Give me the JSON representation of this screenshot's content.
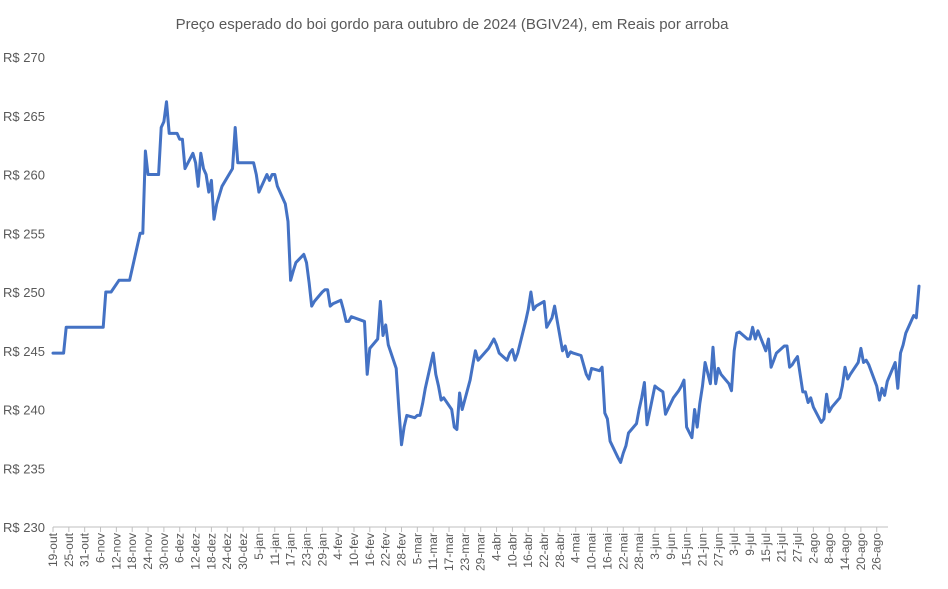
{
  "chart_data": {
    "type": "line",
    "title": "Preço esperado do boi gordo para outubro de 2024 (BGIV24), em Reais por arroba",
    "xlabel": "",
    "ylabel": "",
    "ylim": [
      230,
      270
    ],
    "ytick_values": [
      230,
      235,
      240,
      245,
      250,
      255,
      260,
      265,
      270
    ],
    "ytick_labels": [
      "R$ 230",
      "R$ 235",
      "R$ 240",
      "R$ 245",
      "R$ 250",
      "R$ 255",
      "R$ 260",
      "R$ 265",
      "R$ 270"
    ],
    "x_start": "2023-10-19",
    "x_end": "2024-08-28",
    "xtick_dates": [
      "2023-10-19",
      "2023-10-25",
      "2023-10-31",
      "2023-11-06",
      "2023-11-12",
      "2023-11-18",
      "2023-11-24",
      "2023-11-30",
      "2023-12-06",
      "2023-12-12",
      "2023-12-18",
      "2023-12-24",
      "2023-12-30",
      "2024-01-05",
      "2024-01-11",
      "2024-01-17",
      "2024-01-23",
      "2024-01-29",
      "2024-02-04",
      "2024-02-10",
      "2024-02-16",
      "2024-02-22",
      "2024-02-28",
      "2024-03-05",
      "2024-03-11",
      "2024-03-17",
      "2024-03-23",
      "2024-03-29",
      "2024-04-04",
      "2024-04-10",
      "2024-04-16",
      "2024-04-22",
      "2024-04-28",
      "2024-05-04",
      "2024-05-10",
      "2024-05-16",
      "2024-05-22",
      "2024-05-28",
      "2024-06-03",
      "2024-06-09",
      "2024-06-15",
      "2024-06-21",
      "2024-06-27",
      "2024-07-03",
      "2024-07-09",
      "2024-07-15",
      "2024-07-21",
      "2024-07-27",
      "2024-08-02",
      "2024-08-08",
      "2024-08-14",
      "2024-08-20",
      "2024-08-26"
    ],
    "xtick_labels": [
      "19-out",
      "25-out",
      "31-out",
      "6-nov",
      "12-nov",
      "18-nov",
      "24-nov",
      "30-nov",
      "6-dez",
      "12-dez",
      "18-dez",
      "24-dez",
      "30-dez",
      "5-jan",
      "11-jan",
      "17-jan",
      "23-jan",
      "29-jan",
      "4-fev",
      "10-fev",
      "16-fev",
      "22-fev",
      "28-fev",
      "5-mar",
      "11-mar",
      "17-mar",
      "23-mar",
      "29-mar",
      "4-abr",
      "10-abr",
      "16-abr",
      "22-abr",
      "28-abr",
      "4-mai",
      "10-mai",
      "16-mai",
      "22-mai",
      "28-mai",
      "3-jun",
      "9-jun",
      "15-jun",
      "21-jun",
      "27-jun",
      "3-jul",
      "9-jul",
      "15-jul",
      "21-jul",
      "27-jul",
      "2-ago",
      "8-ago",
      "14-ago",
      "20-ago",
      "26-ago"
    ],
    "series": [
      {
        "name": "BGIV24",
        "color": "#4472c4",
        "points": [
          [
            "2023-10-19",
            244.8
          ],
          [
            "2023-10-23",
            244.8
          ],
          [
            "2023-10-24",
            247.0
          ],
          [
            "2023-10-27",
            247.0
          ],
          [
            "2023-10-31",
            247.0
          ],
          [
            "2023-11-03",
            247.0
          ],
          [
            "2023-11-07",
            247.0
          ],
          [
            "2023-11-08",
            250.0
          ],
          [
            "2023-11-09",
            250.0
          ],
          [
            "2023-11-10",
            250.0
          ],
          [
            "2023-11-13",
            251.0
          ],
          [
            "2023-11-16",
            251.0
          ],
          [
            "2023-11-17",
            251.0
          ],
          [
            "2023-11-20",
            254.0
          ],
          [
            "2023-11-21",
            255.0
          ],
          [
            "2023-11-22",
            255.0
          ],
          [
            "2023-11-23",
            262.0
          ],
          [
            "2023-11-24",
            260.0
          ],
          [
            "2023-11-27",
            260.0
          ],
          [
            "2023-11-28",
            260.0
          ],
          [
            "2023-11-29",
            264.0
          ],
          [
            "2023-11-30",
            264.5
          ],
          [
            "2023-12-01",
            266.2
          ],
          [
            "2023-12-02",
            263.5
          ],
          [
            "2023-12-05",
            263.5
          ],
          [
            "2023-12-06",
            263.0
          ],
          [
            "2023-12-07",
            263.0
          ],
          [
            "2023-12-08",
            260.5
          ],
          [
            "2023-12-11",
            261.8
          ],
          [
            "2023-12-12",
            261.0
          ],
          [
            "2023-12-13",
            259.0
          ],
          [
            "2023-12-14",
            261.8
          ],
          [
            "2023-12-15",
            260.5
          ],
          [
            "2023-12-16",
            260.0
          ],
          [
            "2023-12-17",
            258.5
          ],
          [
            "2023-12-18",
            259.5
          ],
          [
            "2023-12-19",
            256.2
          ],
          [
            "2023-12-20",
            257.5
          ],
          [
            "2023-12-22",
            259.0
          ],
          [
            "2023-12-26",
            260.5
          ],
          [
            "2023-12-27",
            264.0
          ],
          [
            "2023-12-28",
            261.0
          ],
          [
            "2024-01-01",
            261.0
          ],
          [
            "2024-01-03",
            261.0
          ],
          [
            "2024-01-04",
            260.0
          ],
          [
            "2024-01-05",
            258.5
          ],
          [
            "2024-01-08",
            260.0
          ],
          [
            "2024-01-09",
            259.5
          ],
          [
            "2024-01-10",
            260.0
          ],
          [
            "2024-01-11",
            260.0
          ],
          [
            "2024-01-12",
            259.0
          ],
          [
            "2024-01-15",
            257.5
          ],
          [
            "2024-01-16",
            256.0
          ],
          [
            "2024-01-17",
            251.0
          ],
          [
            "2024-01-18",
            251.8
          ],
          [
            "2024-01-19",
            252.5
          ],
          [
            "2024-01-22",
            253.2
          ],
          [
            "2024-01-23",
            252.5
          ],
          [
            "2024-01-24",
            250.8
          ],
          [
            "2024-01-25",
            248.8
          ],
          [
            "2024-01-26",
            249.2
          ],
          [
            "2024-01-29",
            250.0
          ],
          [
            "2024-01-30",
            250.2
          ],
          [
            "2024-01-31",
            250.2
          ],
          [
            "2024-02-01",
            248.8
          ],
          [
            "2024-02-02",
            249.0
          ],
          [
            "2024-02-05",
            249.3
          ],
          [
            "2024-02-06",
            248.5
          ],
          [
            "2024-02-07",
            247.5
          ],
          [
            "2024-02-08",
            247.5
          ],
          [
            "2024-02-09",
            247.9
          ],
          [
            "2024-02-14",
            247.5
          ],
          [
            "2024-02-15",
            243.0
          ],
          [
            "2024-02-16",
            245.2
          ],
          [
            "2024-02-19",
            246.0
          ],
          [
            "2024-02-20",
            249.2
          ],
          [
            "2024-02-21",
            246.3
          ],
          [
            "2024-02-22",
            247.2
          ],
          [
            "2024-02-23",
            245.5
          ],
          [
            "2024-02-26",
            243.5
          ],
          [
            "2024-02-27",
            240.0
          ],
          [
            "2024-02-28",
            237.0
          ],
          [
            "2024-02-29",
            238.5
          ],
          [
            "2024-03-01",
            239.5
          ],
          [
            "2024-03-04",
            239.3
          ],
          [
            "2024-03-05",
            239.5
          ],
          [
            "2024-03-06",
            239.5
          ],
          [
            "2024-03-07",
            240.5
          ],
          [
            "2024-03-08",
            241.8
          ],
          [
            "2024-03-11",
            244.8
          ],
          [
            "2024-03-12",
            243.0
          ],
          [
            "2024-03-13",
            242.0
          ],
          [
            "2024-03-14",
            240.8
          ],
          [
            "2024-03-15",
            241.0
          ],
          [
            "2024-03-18",
            240.0
          ],
          [
            "2024-03-19",
            238.5
          ],
          [
            "2024-03-20",
            238.3
          ],
          [
            "2024-03-21",
            241.4
          ],
          [
            "2024-03-22",
            240.0
          ],
          [
            "2024-03-25",
            242.5
          ],
          [
            "2024-03-26",
            243.8
          ],
          [
            "2024-03-27",
            245.0
          ],
          [
            "2024-03-28",
            244.2
          ],
          [
            "2024-04-01",
            245.2
          ],
          [
            "2024-04-03",
            246.0
          ],
          [
            "2024-04-04",
            245.5
          ],
          [
            "2024-04-05",
            244.8
          ],
          [
            "2024-04-08",
            244.2
          ],
          [
            "2024-04-09",
            244.8
          ],
          [
            "2024-04-10",
            245.1
          ],
          [
            "2024-04-11",
            244.2
          ],
          [
            "2024-04-12",
            244.8
          ],
          [
            "2024-04-15",
            247.5
          ],
          [
            "2024-04-16",
            248.5
          ],
          [
            "2024-04-17",
            250.0
          ],
          [
            "2024-04-18",
            248.5
          ],
          [
            "2024-04-19",
            248.8
          ],
          [
            "2024-04-22",
            249.2
          ],
          [
            "2024-04-23",
            247.0
          ],
          [
            "2024-04-25",
            247.8
          ],
          [
            "2024-04-26",
            248.8
          ],
          [
            "2024-04-29",
            245.0
          ],
          [
            "2024-04-30",
            245.4
          ],
          [
            "2024-05-01",
            244.5
          ],
          [
            "2024-05-02",
            244.9
          ],
          [
            "2024-05-03",
            244.8
          ],
          [
            "2024-05-06",
            244.6
          ],
          [
            "2024-05-08",
            243.0
          ],
          [
            "2024-05-09",
            242.6
          ],
          [
            "2024-05-10",
            243.5
          ],
          [
            "2024-05-13",
            243.3
          ],
          [
            "2024-05-14",
            243.6
          ],
          [
            "2024-05-15",
            239.7
          ],
          [
            "2024-05-16",
            239.2
          ],
          [
            "2024-05-17",
            237.3
          ],
          [
            "2024-05-20",
            235.9
          ],
          [
            "2024-05-21",
            235.5
          ],
          [
            "2024-05-22",
            236.3
          ],
          [
            "2024-05-23",
            236.9
          ],
          [
            "2024-05-24",
            238.0
          ],
          [
            "2024-05-27",
            238.8
          ],
          [
            "2024-05-28",
            240.0
          ],
          [
            "2024-05-29",
            241.0
          ],
          [
            "2024-05-30",
            242.3
          ],
          [
            "2024-05-31",
            238.7
          ],
          [
            "2024-06-03",
            242.0
          ],
          [
            "2024-06-04",
            241.8
          ],
          [
            "2024-06-06",
            241.5
          ],
          [
            "2024-06-07",
            239.6
          ],
          [
            "2024-06-10",
            241.0
          ],
          [
            "2024-06-11",
            241.3
          ],
          [
            "2024-06-12",
            241.6
          ],
          [
            "2024-06-13",
            242.0
          ],
          [
            "2024-06-14",
            242.5
          ],
          [
            "2024-06-15",
            238.5
          ],
          [
            "2024-06-17",
            237.6
          ],
          [
            "2024-06-18",
            240.0
          ],
          [
            "2024-06-19",
            238.5
          ],
          [
            "2024-06-20",
            240.5
          ],
          [
            "2024-06-21",
            242.0
          ],
          [
            "2024-06-22",
            244.0
          ],
          [
            "2024-06-24",
            242.2
          ],
          [
            "2024-06-25",
            245.3
          ],
          [
            "2024-06-26",
            242.2
          ],
          [
            "2024-06-27",
            243.5
          ],
          [
            "2024-06-28",
            243.0
          ],
          [
            "2024-07-01",
            242.2
          ],
          [
            "2024-07-02",
            241.6
          ],
          [
            "2024-07-03",
            245.0
          ],
          [
            "2024-07-04",
            246.5
          ],
          [
            "2024-07-05",
            246.6
          ],
          [
            "2024-07-08",
            246.0
          ],
          [
            "2024-07-09",
            246.0
          ],
          [
            "2024-07-10",
            247.0
          ],
          [
            "2024-07-11",
            246.0
          ],
          [
            "2024-07-12",
            246.7
          ],
          [
            "2024-07-15",
            245.0
          ],
          [
            "2024-07-16",
            246.0
          ],
          [
            "2024-07-17",
            243.6
          ],
          [
            "2024-07-18",
            244.2
          ],
          [
            "2024-07-19",
            244.8
          ],
          [
            "2024-07-22",
            245.4
          ],
          [
            "2024-07-23",
            245.4
          ],
          [
            "2024-07-24",
            243.6
          ],
          [
            "2024-07-25",
            243.8
          ],
          [
            "2024-07-26",
            244.2
          ],
          [
            "2024-07-27",
            244.5
          ],
          [
            "2024-07-29",
            241.5
          ],
          [
            "2024-07-30",
            241.5
          ],
          [
            "2024-07-31",
            240.6
          ],
          [
            "2024-08-01",
            241.0
          ],
          [
            "2024-08-02",
            240.2
          ],
          [
            "2024-08-05",
            238.9
          ],
          [
            "2024-08-06",
            239.2
          ],
          [
            "2024-08-07",
            241.3
          ],
          [
            "2024-08-08",
            239.8
          ],
          [
            "2024-08-09",
            240.2
          ],
          [
            "2024-08-12",
            241.0
          ],
          [
            "2024-08-13",
            242.0
          ],
          [
            "2024-08-14",
            243.6
          ],
          [
            "2024-08-15",
            242.6
          ],
          [
            "2024-08-16",
            243.0
          ],
          [
            "2024-08-19",
            244.0
          ],
          [
            "2024-08-20",
            245.2
          ],
          [
            "2024-08-21",
            244.0
          ],
          [
            "2024-08-22",
            244.2
          ],
          [
            "2024-08-23",
            243.8
          ],
          [
            "2024-08-26",
            242.0
          ],
          [
            "2024-08-27",
            240.8
          ],
          [
            "2024-08-28",
            241.8
          ],
          [
            "2024-08-29",
            241.2
          ],
          [
            "2024-08-30",
            242.4
          ],
          [
            "2024-09-02",
            244.0
          ],
          [
            "2024-09-03",
            241.8
          ],
          [
            "2024-09-04",
            244.8
          ],
          [
            "2024-09-05",
            245.5
          ],
          [
            "2024-09-06",
            246.5
          ],
          [
            "2024-09-09",
            248.0
          ],
          [
            "2024-09-10",
            247.8
          ],
          [
            "2024-09-11",
            250.5
          ]
        ]
      }
    ]
  }
}
